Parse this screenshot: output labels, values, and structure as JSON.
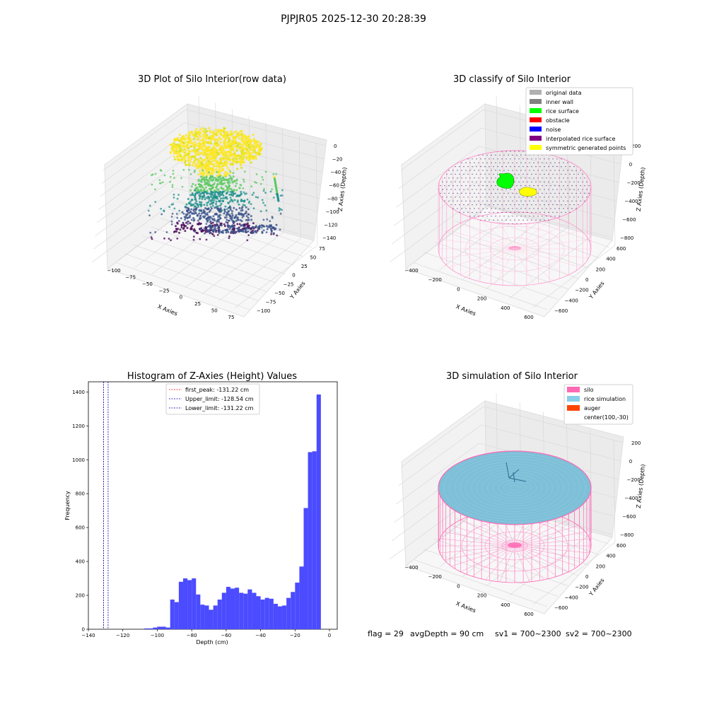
{
  "figure_title": "PJPJR05 2025-12-30 20:28:39",
  "footer": {
    "flag": "flag = 29",
    "avg_depth": "avgDepth = 90 cm",
    "sv1": "sv1 = 700~2300",
    "sv2": "sv2 = 700~2300"
  },
  "chart_data": [
    {
      "type": "scatter",
      "projection": "3d",
      "title": "3D Plot of Silo Interior(row data)",
      "xlabel": "X Axies",
      "ylabel": "Y Axies",
      "zlabel": "Z Axies (Depth)",
      "x_ticks": [
        "−100",
        "−75",
        "−50",
        "−25",
        "0",
        "25",
        "50",
        "75"
      ],
      "y_ticks": [
        "75",
        "50",
        "25",
        "0",
        "−25",
        "−50",
        "−75",
        "−100"
      ],
      "z_ticks": [
        "0",
        "−20",
        "−40",
        "−60",
        "−80",
        "−100",
        "−120",
        "−140"
      ],
      "colormap": "viridis",
      "grid": true
    },
    {
      "type": "scatter",
      "projection": "3d",
      "title": "3D classify of Silo Interior",
      "xlabel": "X Axies",
      "ylabel": "Y Axies",
      "zlabel": "Z Axies (Depth)",
      "x_ticks": [
        "−400",
        "−200",
        "0",
        "200",
        "400",
        "600"
      ],
      "y_ticks": [
        "600",
        "400",
        "200",
        "0",
        "−200",
        "−400",
        "−600"
      ],
      "z_ticks": [
        "200",
        "0",
        "−200",
        "−400",
        "−600",
        "−800"
      ],
      "legend_position": "top-right",
      "legend": [
        {
          "label": "original data",
          "color": "#b0b0b0"
        },
        {
          "label": "inner wall",
          "color": "#808080"
        },
        {
          "label": "rice surface",
          "color": "#00ff00"
        },
        {
          "label": "obstacle",
          "color": "#ff0000"
        },
        {
          "label": "noise",
          "color": "#0000ff"
        },
        {
          "label": "interpolated rice surface",
          "color": "#800080"
        },
        {
          "label": "symmetric generated points",
          "color": "#ffff00"
        }
      ],
      "grid": true
    },
    {
      "type": "bar",
      "title": "Histogram of Z-Axies (Height) Values",
      "xlabel": "Depth (cm)",
      "ylabel": "Frequency",
      "xlim": [
        -140,
        4.5
      ],
      "ylim": [
        0,
        1460
      ],
      "x_ticks": [
        -140,
        -120,
        -100,
        -80,
        -60,
        -40,
        -20,
        0
      ],
      "y_ticks": [
        0,
        200,
        400,
        600,
        800,
        1000,
        1200,
        1400
      ],
      "bin_width": 2.5,
      "bins": [
        {
          "x": -107.5,
          "v": 5
        },
        {
          "x": -105,
          "v": 5
        },
        {
          "x": -102.5,
          "v": 10
        },
        {
          "x": -100,
          "v": 15
        },
        {
          "x": -97.5,
          "v": 15
        },
        {
          "x": -95,
          "v": 10
        },
        {
          "x": -92.5,
          "v": 175
        },
        {
          "x": -90,
          "v": 160
        },
        {
          "x": -87.5,
          "v": 280
        },
        {
          "x": -85,
          "v": 300
        },
        {
          "x": -82.5,
          "v": 290
        },
        {
          "x": -80,
          "v": 300
        },
        {
          "x": -77.5,
          "v": 205
        },
        {
          "x": -75,
          "v": 145
        },
        {
          "x": -72.5,
          "v": 140
        },
        {
          "x": -70,
          "v": 115
        },
        {
          "x": -67.5,
          "v": 140
        },
        {
          "x": -65,
          "v": 175
        },
        {
          "x": -62.5,
          "v": 215
        },
        {
          "x": -60,
          "v": 250
        },
        {
          "x": -57.5,
          "v": 240
        },
        {
          "x": -55,
          "v": 245
        },
        {
          "x": -52.5,
          "v": 215
        },
        {
          "x": -50,
          "v": 210
        },
        {
          "x": -47.5,
          "v": 235
        },
        {
          "x": -45,
          "v": 215
        },
        {
          "x": -42.5,
          "v": 195
        },
        {
          "x": -40,
          "v": 175
        },
        {
          "x": -37.5,
          "v": 185
        },
        {
          "x": -35,
          "v": 180
        },
        {
          "x": -32.5,
          "v": 150
        },
        {
          "x": -30,
          "v": 135
        },
        {
          "x": -27.5,
          "v": 140
        },
        {
          "x": -25,
          "v": 185
        },
        {
          "x": -22.5,
          "v": 220
        },
        {
          "x": -20,
          "v": 275
        },
        {
          "x": -17.5,
          "v": 370
        },
        {
          "x": -15,
          "v": 715
        },
        {
          "x": -12.5,
          "v": 1045
        },
        {
          "x": -10,
          "v": 1050
        },
        {
          "x": -7.5,
          "v": 1385
        }
      ],
      "bar_color": "#4b4bff",
      "vlines": [
        {
          "label": "first_peak: -131.22 cm",
          "x": -131.22,
          "color": "#ff0000"
        },
        {
          "label": "Upper_limit: -128.54 cm",
          "x": -128.54,
          "color": "#0000b0"
        },
        {
          "label": "Lower_limit: -131.22 cm",
          "x": -131.22,
          "color": "#0000b0"
        }
      ],
      "legend_position": "top-center"
    },
    {
      "type": "scatter",
      "projection": "3d",
      "title": "3D simulation of Silo Interior",
      "xlabel": "X Axies",
      "ylabel": "Y Axies",
      "zlabel": "Z Axies (Depth)",
      "x_ticks": [
        "−400",
        "−200",
        "0",
        "200",
        "400",
        "600"
      ],
      "y_ticks": [
        "600",
        "400",
        "200",
        "0",
        "−200",
        "−400",
        "−600"
      ],
      "z_ticks": [
        "200",
        "0",
        "−200",
        "−400",
        "−600",
        "−800"
      ],
      "legend_position": "top-right",
      "legend": [
        {
          "label": "silo",
          "color": "#ff69b4"
        },
        {
          "label": "rice simulation",
          "color": "#87ceeb"
        },
        {
          "label": "auger",
          "color": "#ff4500"
        },
        {
          "label": "center(100,-30)",
          "color": ""
        }
      ],
      "grid": true
    }
  ]
}
